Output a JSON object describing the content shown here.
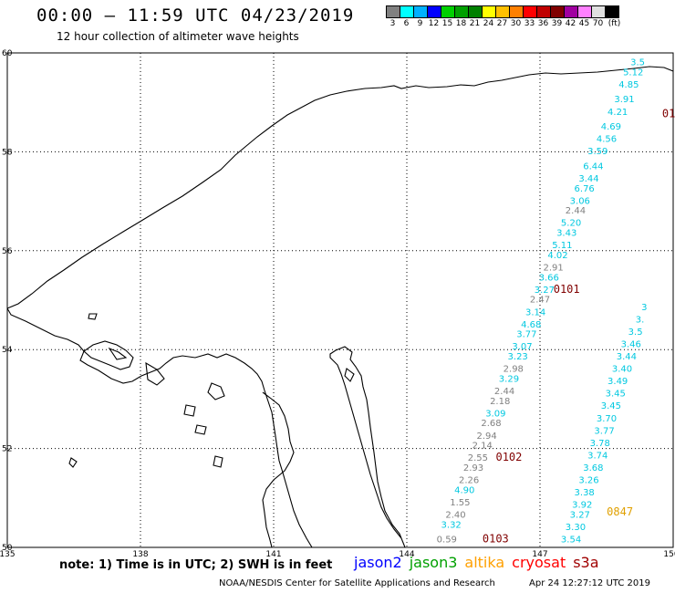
{
  "header": {
    "title": "00:00 – 11:59 UTC 04/23/2019",
    "subtitle": "12 hour collection of altimeter wave heights"
  },
  "colorbar": {
    "colors": [
      "#808080",
      "#00ffff",
      "#00b0ff",
      "#0000ff",
      "#00d000",
      "#00a000",
      "#008000",
      "#ffff00",
      "#ffc000",
      "#ff8000",
      "#ff0000",
      "#c00000",
      "#800000",
      "#a000a0",
      "#ff80ff",
      "#e0e0e0",
      "#000000"
    ],
    "labels": [
      "3",
      "6",
      "9",
      "12",
      "15",
      "18",
      "21",
      "24",
      "27",
      "30",
      "33",
      "36",
      "39",
      "42",
      "45",
      "70"
    ],
    "unit": "(ft)"
  },
  "axes": {
    "lon_labels": [
      "135",
      "138",
      "141",
      "144",
      "147",
      "150"
    ],
    "lat_labels": [
      "50",
      "52",
      "54",
      "56",
      "58",
      "60"
    ]
  },
  "chart_data": {
    "type": "scatter",
    "xlim": [
      135,
      150
    ],
    "ylim": [
      50,
      60
    ],
    "track1": {
      "points": [
        {
          "lon": 144.9,
          "lat": 50.1,
          "v": "0.59",
          "c": "#808080"
        },
        {
          "lon": 145.0,
          "lat": 50.4,
          "v": "3.32",
          "c": "#00c8e0"
        },
        {
          "lon": 145.1,
          "lat": 50.6,
          "v": "2.40",
          "c": "#808080"
        },
        {
          "lon": 145.2,
          "lat": 50.85,
          "v": "1.55",
          "c": "#808080"
        },
        {
          "lon": 145.3,
          "lat": 51.1,
          "v": "4.90",
          "c": "#00c8e0"
        },
        {
          "lon": 145.4,
          "lat": 51.3,
          "v": "2.26",
          "c": "#808080"
        },
        {
          "lon": 145.5,
          "lat": 51.55,
          "v": "2.93",
          "c": "#808080"
        },
        {
          "lon": 145.6,
          "lat": 51.75,
          "v": "2.55",
          "c": "#808080"
        },
        {
          "lon": 145.7,
          "lat": 52.0,
          "v": "2.14",
          "c": "#808080"
        },
        {
          "lon": 145.8,
          "lat": 52.2,
          "v": "2.94",
          "c": "#808080"
        },
        {
          "lon": 145.9,
          "lat": 52.45,
          "v": "2.68",
          "c": "#808080"
        },
        {
          "lon": 146.0,
          "lat": 52.65,
          "v": "3.09",
          "c": "#00c8e0"
        },
        {
          "lon": 146.1,
          "lat": 52.9,
          "v": "2.18",
          "c": "#808080"
        },
        {
          "lon": 146.2,
          "lat": 53.1,
          "v": "2.44",
          "c": "#808080"
        },
        {
          "lon": 146.3,
          "lat": 53.35,
          "v": "3.29",
          "c": "#00c8e0"
        },
        {
          "lon": 146.4,
          "lat": 53.55,
          "v": "2.98",
          "c": "#808080"
        },
        {
          "lon": 146.5,
          "lat": 53.8,
          "v": "3.23",
          "c": "#00c8e0"
        },
        {
          "lon": 146.6,
          "lat": 54.0,
          "v": "3.07",
          "c": "#00c8e0"
        },
        {
          "lon": 146.7,
          "lat": 54.25,
          "v": "3.77",
          "c": "#00c8e0"
        },
        {
          "lon": 146.8,
          "lat": 54.45,
          "v": "4.68",
          "c": "#00c8e0"
        },
        {
          "lon": 146.9,
          "lat": 54.7,
          "v": "3.14",
          "c": "#00c8e0"
        },
        {
          "lon": 147.0,
          "lat": 54.95,
          "v": "2.47",
          "c": "#808080"
        },
        {
          "lon": 147.1,
          "lat": 55.15,
          "v": "3.27",
          "c": "#00c8e0"
        },
        {
          "lon": 147.2,
          "lat": 55.4,
          "v": "3.66",
          "c": "#00c8e0"
        },
        {
          "lon": 147.3,
          "lat": 55.6,
          "v": "2.91",
          "c": "#808080"
        },
        {
          "lon": 147.4,
          "lat": 55.85,
          "v": "4.02",
          "c": "#00c8e0"
        },
        {
          "lon": 147.5,
          "lat": 56.05,
          "v": "5.11",
          "c": "#00c8e0"
        },
        {
          "lon": 147.6,
          "lat": 56.3,
          "v": "3.43",
          "c": "#00c8e0"
        },
        {
          "lon": 147.7,
          "lat": 56.5,
          "v": "5.20",
          "c": "#00c8e0"
        },
        {
          "lon": 147.8,
          "lat": 56.75,
          "v": "2.44",
          "c": "#808080"
        },
        {
          "lon": 147.9,
          "lat": 56.95,
          "v": "3.06",
          "c": "#00c8e0"
        },
        {
          "lon": 148.0,
          "lat": 57.2,
          "v": "6.76",
          "c": "#00c8e0"
        },
        {
          "lon": 148.1,
          "lat": 57.4,
          "v": "3.44",
          "c": "#00c8e0"
        },
        {
          "lon": 148.2,
          "lat": 57.65,
          "v": "6.44",
          "c": "#00c8e0"
        },
        {
          "lon": 148.3,
          "lat": 57.95,
          "v": "3.59",
          "c": "#00c8e0"
        },
        {
          "lon": 148.5,
          "lat": 58.2,
          "v": "4.56",
          "c": "#00c8e0"
        },
        {
          "lon": 148.6,
          "lat": 58.45,
          "v": "4.69",
          "c": "#00c8e0"
        },
        {
          "lon": 148.75,
          "lat": 58.75,
          "v": "4.21",
          "c": "#00c8e0"
        },
        {
          "lon": 148.9,
          "lat": 59.0,
          "v": "3.91",
          "c": "#00c8e0"
        },
        {
          "lon": 149.0,
          "lat": 59.3,
          "v": "4.85",
          "c": "#00c8e0"
        },
        {
          "lon": 149.1,
          "lat": 59.55,
          "v": "5.12",
          "c": "#00c8e0"
        },
        {
          "lon": 149.2,
          "lat": 59.75,
          "v": "3.5",
          "c": "#00c8e0"
        }
      ]
    },
    "track2": {
      "points": [
        {
          "lon": 147.7,
          "lat": 50.1,
          "v": "3.54",
          "c": "#00c8e0"
        },
        {
          "lon": 147.8,
          "lat": 50.35,
          "v": "3.30",
          "c": "#00c8e0"
        },
        {
          "lon": 147.9,
          "lat": 50.6,
          "v": "3.27",
          "c": "#00c8e0"
        },
        {
          "lon": 147.95,
          "lat": 50.8,
          "v": "3.92",
          "c": "#00c8e0"
        },
        {
          "lon": 148.0,
          "lat": 51.05,
          "v": "3.38",
          "c": "#00c8e0"
        },
        {
          "lon": 148.1,
          "lat": 51.3,
          "v": "3.26",
          "c": "#00c8e0"
        },
        {
          "lon": 148.2,
          "lat": 51.55,
          "v": "3.68",
          "c": "#00c8e0"
        },
        {
          "lon": 148.3,
          "lat": 51.8,
          "v": "3.74",
          "c": "#00c8e0"
        },
        {
          "lon": 148.35,
          "lat": 52.05,
          "v": "3.78",
          "c": "#00c8e0"
        },
        {
          "lon": 148.45,
          "lat": 52.3,
          "v": "3.77",
          "c": "#00c8e0"
        },
        {
          "lon": 148.5,
          "lat": 52.55,
          "v": "3.70",
          "c": "#00c8e0"
        },
        {
          "lon": 148.6,
          "lat": 52.8,
          "v": "3.45",
          "c": "#00c8e0"
        },
        {
          "lon": 148.7,
          "lat": 53.05,
          "v": "3.45",
          "c": "#00c8e0"
        },
        {
          "lon": 148.75,
          "lat": 53.3,
          "v": "3.49",
          "c": "#00c8e0"
        },
        {
          "lon": 148.85,
          "lat": 53.55,
          "v": "3.40",
          "c": "#00c8e0"
        },
        {
          "lon": 148.95,
          "lat": 53.8,
          "v": "3.44",
          "c": "#00c8e0"
        },
        {
          "lon": 149.05,
          "lat": 54.05,
          "v": "3.46",
          "c": "#00c8e0"
        },
        {
          "lon": 149.15,
          "lat": 54.3,
          "v": "3.5",
          "c": "#00c8e0"
        },
        {
          "lon": 149.25,
          "lat": 54.55,
          "v": "3.",
          "c": "#00c8e0"
        },
        {
          "lon": 149.35,
          "lat": 54.8,
          "v": "3",
          "c": "#00c8e0"
        }
      ]
    },
    "time_labels": [
      {
        "lon": 146.0,
        "lat": 50.1,
        "v": "0103",
        "c": "#800000"
      },
      {
        "lon": 146.3,
        "lat": 51.75,
        "v": "0102",
        "c": "#800000"
      },
      {
        "lon": 147.6,
        "lat": 55.15,
        "v": "0101",
        "c": "#800000"
      },
      {
        "lon": 149.9,
        "lat": 58.7,
        "v": "01",
        "c": "#800000"
      },
      {
        "lon": 148.8,
        "lat": 50.65,
        "v": "0847",
        "c": "#e0a000"
      }
    ]
  },
  "footer": {
    "note": "note:  1) Time is in UTC;  2) SWH is in feet",
    "satellites": [
      {
        "name": "jason2",
        "color": "#0000ff"
      },
      {
        "name": "jason3",
        "color": "#00a000"
      },
      {
        "name": "altika",
        "color": "#ffa000"
      },
      {
        "name": "cryosat",
        "color": "#ff0000"
      },
      {
        "name": "s3a",
        "color": "#a00000"
      }
    ],
    "credit": "NOAA/NESDIS Center for Satellite Applications and Research",
    "timestamp": "Apr 24 12:27:12 UTC 2019"
  }
}
